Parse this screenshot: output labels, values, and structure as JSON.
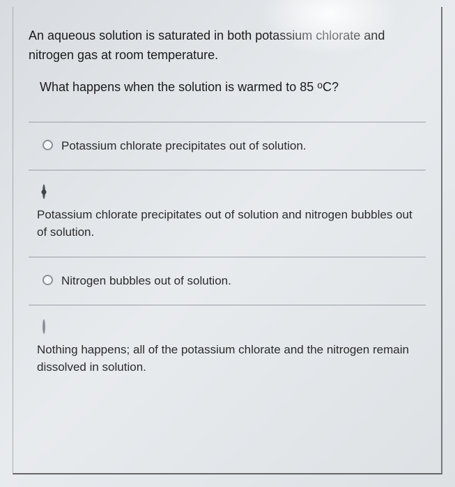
{
  "question": {
    "stem": "An aqueous solution is saturated in both potassium chlorate and nitrogen gas at room temperature.",
    "sub": "What happens when when the solution is warmed to 85 ∘C?"
  },
  "options": [
    {
      "text": "Potassium chlorate precipitates out of solution.",
      "selected": false,
      "layout": "inline"
    },
    {
      "text": "Potassium chlorate precipitates out of solution and nitrogen bubbles out of solution.",
      "selected": true,
      "layout": "stacked"
    },
    {
      "text": "Nitrogen bubbles out of solution.",
      "selected": false,
      "layout": "inline"
    },
    {
      "text": "Nothing happens; all of the potassium chlorate and the nitrogen remain dissolved in solution.",
      "selected": false,
      "layout": "stacked"
    }
  ],
  "colors": {
    "border": "#888888",
    "divider": "#9aa0a6",
    "text": "#1a1a1a",
    "option_text": "#2b2b2b",
    "radio_border": "#8a9099",
    "radio_fill": "#3a434c"
  }
}
